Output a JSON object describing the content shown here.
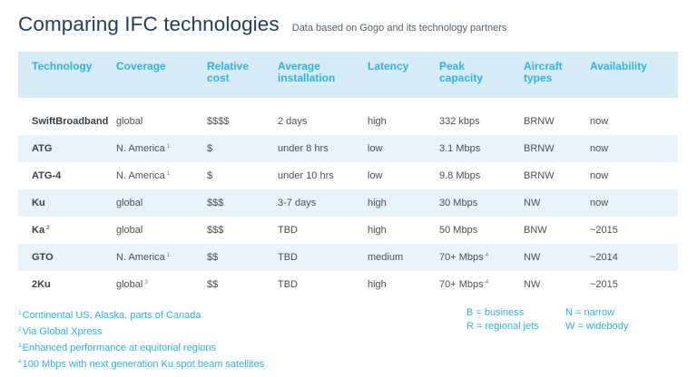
{
  "header": {
    "title": "Comparing IFC technologies",
    "subtitle": "Data based on Gogo and its technology partners"
  },
  "table": {
    "columns": [
      {
        "l1": "Technology",
        "l2": ""
      },
      {
        "l1": "Coverage",
        "l2": ""
      },
      {
        "l1": "Relative",
        "l2": "cost"
      },
      {
        "l1": "Average",
        "l2": "installation"
      },
      {
        "l1": "Latency",
        "l2": ""
      },
      {
        "l1": "Peak",
        "l2": "capacity"
      },
      {
        "l1": "Aircraft",
        "l2": "types"
      },
      {
        "l1": "Availability",
        "l2": ""
      }
    ],
    "rows": [
      {
        "tech": "SwiftBroadband",
        "tech_fn": "",
        "coverage": "global",
        "coverage_fn": "",
        "cost": "$$$$",
        "install": "2 days",
        "latency": "high",
        "capacity": "332 kbps",
        "capacity_fn": "",
        "aircraft": "BRNW",
        "availability": "now"
      },
      {
        "tech": "ATG",
        "tech_fn": "",
        "coverage": "N. America",
        "coverage_fn": "1",
        "cost": "$",
        "install": "under 8 hrs",
        "latency": "low",
        "capacity": "3.1 Mbps",
        "capacity_fn": "",
        "aircraft": "BRNW",
        "availability": "now"
      },
      {
        "tech": "ATG-4",
        "tech_fn": "",
        "coverage": "N. America",
        "coverage_fn": "1",
        "cost": "$",
        "install": "under 10 hrs",
        "latency": "low",
        "capacity": "9.8 Mbps",
        "capacity_fn": "",
        "aircraft": "BRNW",
        "availability": "now"
      },
      {
        "tech": "Ku",
        "tech_fn": "",
        "coverage": "global",
        "coverage_fn": "",
        "cost": "$$$",
        "install": "3-7 days",
        "latency": "high",
        "capacity": "30 Mbps",
        "capacity_fn": "",
        "aircraft": "NW",
        "availability": "now"
      },
      {
        "tech": "Ka",
        "tech_fn": "2",
        "coverage": "global",
        "coverage_fn": "",
        "cost": "$$$",
        "install": "TBD",
        "latency": "high",
        "capacity": "50 Mbps",
        "capacity_fn": "",
        "aircraft": "BNW",
        "availability": "~2015"
      },
      {
        "tech": "GTO",
        "tech_fn": "",
        "coverage": "N. America",
        "coverage_fn": "1",
        "cost": "$$",
        "install": "TBD",
        "latency": "medium",
        "capacity": "70+ Mbps",
        "capacity_fn": "4",
        "aircraft": "NW",
        "availability": "~2014"
      },
      {
        "tech": "2Ku",
        "tech_fn": "",
        "coverage": "global",
        "coverage_fn": "3",
        "cost": "$$",
        "install": "TBD",
        "latency": "high",
        "capacity": "70+ Mbps",
        "capacity_fn": "4",
        "aircraft": "NW",
        "availability": "~2015"
      }
    ]
  },
  "footnotes": [
    {
      "mark": "1",
      "text": "Continental US, Alaska, parts of Canada"
    },
    {
      "mark": "2",
      "text": "Via Global Xpress"
    },
    {
      "mark": "3",
      "text": "Enhanced performance at equitorial regions"
    },
    {
      "mark": "4",
      "text": "100 Mbps with next generation Ku spot beam satellites"
    }
  ],
  "legend": [
    "B = business",
    "N = narrow",
    "R = regional jets",
    "W = widebody"
  ],
  "colors": {
    "title": "#223e5c",
    "accent": "#2fb3de",
    "header_bg": "#d7ecf6",
    "row_alt_bg": "#e7f4fb"
  }
}
